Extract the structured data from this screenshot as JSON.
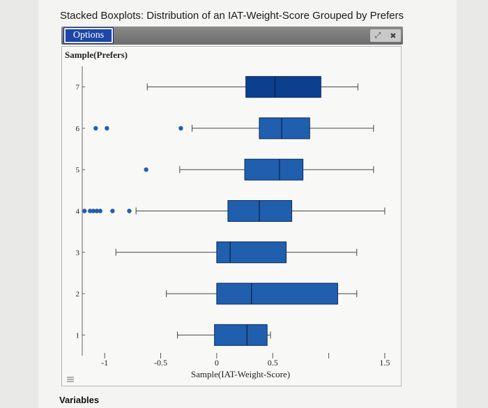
{
  "header": {
    "title": "Stacked Boxplots: Distribution of an IAT-Weight-Score Grouped by Prefers",
    "options_label": "Options"
  },
  "footer": {
    "variables_label": "Variables"
  },
  "colors": {
    "box_fill": "#1f5fae",
    "box_fill_top": "#0d3f8f",
    "whisker": "#444444",
    "outlier": "#1f5fae",
    "accent_button": "#1c47a8"
  },
  "chart_data": {
    "type": "boxplot",
    "orientation": "horizontal",
    "title": "Stacked Boxplots: Distribution of an IAT-Weight-Score Grouped by Prefers",
    "ylabel": "Sample(Prefers)",
    "xlabel": "Sample(IAT-Weight-Score)",
    "xlim": [
      -1.2,
      1.6
    ],
    "ylim": [
      0.5,
      7.5
    ],
    "x_ticks": [
      -1,
      -0.5,
      0,
      0.5,
      1,
      1.5
    ],
    "x_tick_labels": [
      "-1",
      "-0.5",
      "0",
      "0.5",
      "",
      "1.5"
    ],
    "y_ticks": [
      1,
      2,
      3,
      4,
      5,
      6,
      7
    ],
    "y_tick_labels": [
      "1",
      "2",
      "3",
      "4",
      "5",
      "6",
      "7"
    ],
    "groups": [
      {
        "category": "7",
        "min": -0.62,
        "q1": 0.26,
        "median": 0.52,
        "q3": 0.93,
        "max": 1.26,
        "outliers": []
      },
      {
        "category": "6",
        "min": -0.22,
        "q1": 0.38,
        "median": 0.58,
        "q3": 0.83,
        "max": 1.4,
        "outliers": [
          -1.08,
          -0.98,
          -0.32
        ]
      },
      {
        "category": "5",
        "min": -0.33,
        "q1": 0.25,
        "median": 0.56,
        "q3": 0.77,
        "max": 1.4,
        "outliers": [
          -0.63
        ]
      },
      {
        "category": "4",
        "min": -0.72,
        "q1": 0.1,
        "median": 0.38,
        "q3": 0.67,
        "max": 1.5,
        "outliers": [
          -1.18,
          -1.13,
          -1.1,
          -1.07,
          -1.04,
          -0.93,
          -0.78
        ]
      },
      {
        "category": "3",
        "min": -0.9,
        "q1": 0.0,
        "median": 0.12,
        "q3": 0.62,
        "max": 1.25,
        "outliers": []
      },
      {
        "category": "2",
        "min": -0.45,
        "q1": 0.0,
        "median": 0.31,
        "q3": 1.08,
        "max": 1.25,
        "outliers": []
      },
      {
        "category": "1",
        "min": -0.35,
        "q1": -0.02,
        "median": 0.27,
        "q3": 0.45,
        "max": 0.48,
        "outliers": []
      }
    ]
  }
}
